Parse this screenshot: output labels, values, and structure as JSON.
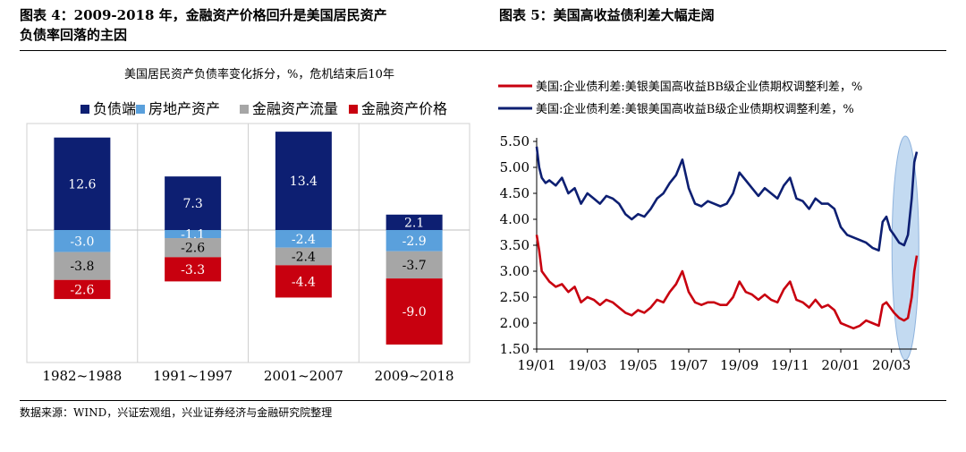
{
  "header": {
    "left_title_line1": "图表 4：2009-2018 年，金融资产价格回升是美国居民资产",
    "left_title_line2": "负债率回落的主因",
    "right_title": "图表 5：美国高收益债利差大幅走阔"
  },
  "source": "数据来源：WIND，兴证宏观组，兴业证券经济与金融研究院整理",
  "chart_data": [
    {
      "type": "bar",
      "stacked": true,
      "title": "美国居民资产负债率变化拆分，%，危机结束后10年",
      "categories": [
        "1982~1988",
        "1991~1997",
        "2001~2007",
        "2009~2018"
      ],
      "legend_position": "top",
      "series": [
        {
          "name": "负债端",
          "color": "#0d1f72",
          "values": [
            12.6,
            7.3,
            13.4,
            2.1
          ]
        },
        {
          "name": "房地产资产",
          "color": "#5aa0dc",
          "values": [
            -3.0,
            -1.1,
            -2.4,
            -2.9
          ]
        },
        {
          "name": "金融资产流量",
          "color": "#a6a6a6",
          "values": [
            -3.8,
            -2.6,
            -2.4,
            -3.7
          ]
        },
        {
          "name": "金融资产价格",
          "color": "#c8000f",
          "values": [
            -2.6,
            -3.3,
            -4.4,
            -9.0
          ]
        }
      ],
      "data_labels": [
        [
          "12.6",
          "-3.0",
          "-3.8",
          "-2.6"
        ],
        [
          "7.3",
          "-1.1",
          "-2.6",
          "-3.3"
        ],
        [
          "13.4",
          "-2.4",
          "-2.4",
          "-4.4"
        ],
        [
          "2.1",
          "-2.9",
          "-3.7",
          "-9.0"
        ]
      ],
      "ylim": [
        -18,
        16
      ]
    },
    {
      "type": "line",
      "x_ticks": [
        "19/01",
        "19/03",
        "19/05",
        "19/07",
        "19/09",
        "19/11",
        "20/01",
        "20/03"
      ],
      "y_ticks": [
        "5.50",
        "5.00",
        "4.50",
        "4.00",
        "3.50",
        "3.00",
        "2.50",
        "2.00",
        "1.50"
      ],
      "ylim": [
        1.5,
        5.5
      ],
      "xlim": [
        0,
        15
      ],
      "legend_position": "top",
      "highlight": "ellipse around 2020/02-2020/03",
      "highlight_color": "#b9d3ef",
      "series": [
        {
          "name": "美国:企业债利差:美银美国高收益BB级企业债期权调整利差，%",
          "color": "#c8000f",
          "x": [
            0.0,
            0.1,
            0.2,
            0.35,
            0.5,
            0.75,
            1.0,
            1.25,
            1.5,
            1.75,
            2.0,
            2.25,
            2.5,
            2.75,
            3.0,
            3.25,
            3.5,
            3.75,
            4.0,
            4.25,
            4.5,
            4.75,
            5.0,
            5.25,
            5.5,
            5.75,
            6.0,
            6.25,
            6.5,
            6.75,
            7.0,
            7.25,
            7.5,
            7.75,
            8.0,
            8.25,
            8.5,
            8.75,
            9.0,
            9.25,
            9.5,
            9.75,
            10.0,
            10.25,
            10.5,
            10.75,
            11.0,
            11.25,
            11.5,
            11.75,
            12.0,
            12.25,
            12.5,
            12.75,
            13.0,
            13.25,
            13.5,
            13.65,
            13.8,
            13.95,
            14.1,
            14.3,
            14.5,
            14.65,
            14.8,
            14.9,
            15.0
          ],
          "y": [
            3.7,
            3.4,
            3.0,
            2.9,
            2.8,
            2.7,
            2.75,
            2.6,
            2.7,
            2.4,
            2.5,
            2.45,
            2.35,
            2.45,
            2.4,
            2.3,
            2.2,
            2.15,
            2.25,
            2.2,
            2.3,
            2.45,
            2.4,
            2.6,
            2.75,
            3.0,
            2.6,
            2.4,
            2.35,
            2.4,
            2.4,
            2.35,
            2.35,
            2.5,
            2.8,
            2.6,
            2.55,
            2.45,
            2.55,
            2.45,
            2.4,
            2.65,
            2.8,
            2.45,
            2.4,
            2.3,
            2.45,
            2.3,
            2.35,
            2.25,
            2.0,
            1.95,
            1.9,
            1.95,
            2.05,
            2.0,
            1.95,
            2.35,
            2.4,
            2.3,
            2.2,
            2.1,
            2.05,
            2.1,
            2.5,
            3.0,
            3.3
          ]
        },
        {
          "name": "美国:企业债利差:美银美国高收益B级企业债期权调整利差，%",
          "color": "#0d1f72",
          "x": [
            0.0,
            0.1,
            0.2,
            0.35,
            0.5,
            0.75,
            1.0,
            1.25,
            1.5,
            1.75,
            2.0,
            2.25,
            2.5,
            2.75,
            3.0,
            3.25,
            3.5,
            3.75,
            4.0,
            4.25,
            4.5,
            4.75,
            5.0,
            5.25,
            5.5,
            5.75,
            6.0,
            6.25,
            6.5,
            6.75,
            7.0,
            7.25,
            7.5,
            7.75,
            8.0,
            8.25,
            8.5,
            8.75,
            9.0,
            9.25,
            9.5,
            9.75,
            10.0,
            10.25,
            10.5,
            10.75,
            11.0,
            11.25,
            11.5,
            11.75,
            12.0,
            12.25,
            12.5,
            12.75,
            13.0,
            13.25,
            13.5,
            13.65,
            13.8,
            13.95,
            14.1,
            14.3,
            14.5,
            14.65,
            14.8,
            14.9,
            15.0
          ],
          "y": [
            5.4,
            5.0,
            4.8,
            4.7,
            4.75,
            4.65,
            4.8,
            4.5,
            4.6,
            4.3,
            4.5,
            4.4,
            4.3,
            4.45,
            4.4,
            4.3,
            4.1,
            4.0,
            4.1,
            4.05,
            4.2,
            4.4,
            4.5,
            4.7,
            4.85,
            5.15,
            4.6,
            4.3,
            4.25,
            4.35,
            4.3,
            4.25,
            4.3,
            4.5,
            4.9,
            4.75,
            4.6,
            4.45,
            4.6,
            4.5,
            4.4,
            4.65,
            4.8,
            4.4,
            4.35,
            4.2,
            4.4,
            4.3,
            4.3,
            4.2,
            3.85,
            3.7,
            3.65,
            3.6,
            3.55,
            3.45,
            3.4,
            3.95,
            4.05,
            3.8,
            3.7,
            3.55,
            3.5,
            3.7,
            4.4,
            5.1,
            5.3
          ]
        }
      ]
    }
  ]
}
